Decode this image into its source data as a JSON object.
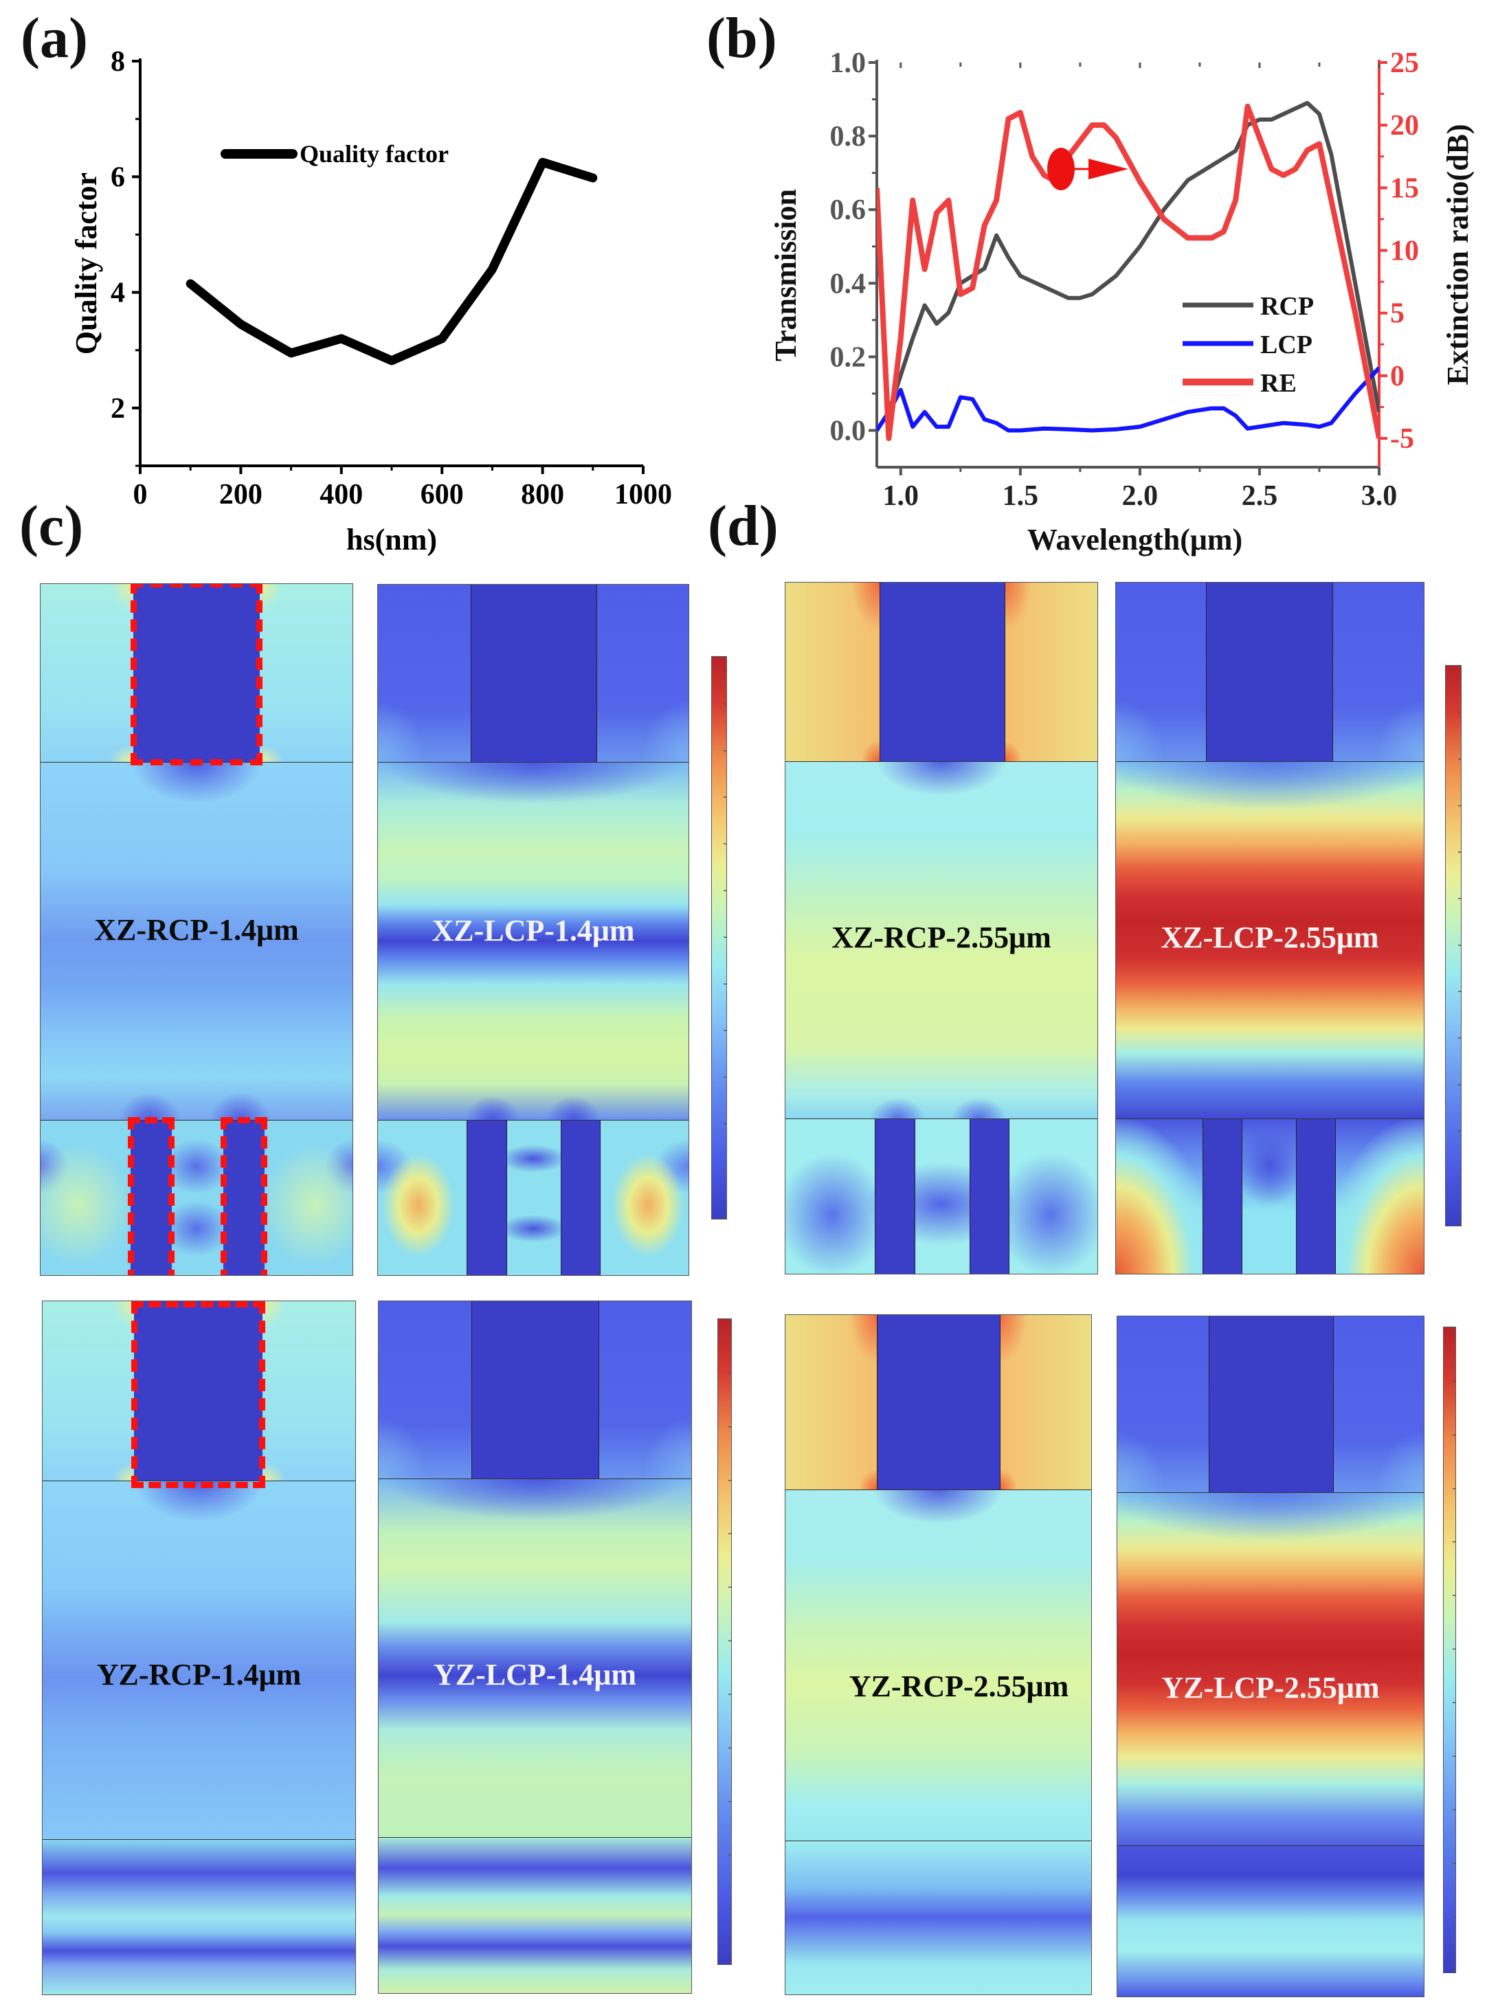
{
  "panel_labels": {
    "a": "(a)",
    "b": "(b)",
    "c": "(c)",
    "d": "(d)"
  },
  "chart_data": [
    {
      "type": "line",
      "title": "",
      "xlabel": "hs(nm)",
      "ylabel": "Quality factor",
      "xlim": [
        0,
        1000
      ],
      "ylim": [
        1,
        8
      ],
      "xticks": [
        0,
        200,
        400,
        600,
        800,
        1000
      ],
      "xtick_labels": [
        "0",
        "200",
        "400",
        "600",
        "800",
        "1000"
      ],
      "yticks": [
        2,
        4,
        6,
        8
      ],
      "ytick_labels": [
        "2",
        "4",
        "6",
        "8"
      ],
      "legend": "top-left",
      "series": [
        {
          "name": "Quality factor",
          "color": "#000000",
          "x": [
            100,
            200,
            300,
            400,
            500,
            600,
            700,
            800,
            900
          ],
          "y": [
            4.15,
            3.45,
            2.95,
            3.2,
            2.82,
            3.2,
            4.4,
            6.25,
            5.98
          ]
        }
      ]
    },
    {
      "type": "line",
      "title": "",
      "xlabel": "Wavelength(μm)",
      "ylabel": "Transmission",
      "y2label": "Extinction ratio(dB)",
      "xlim": [
        0.9,
        3.0
      ],
      "ylim": [
        -0.1,
        1.0
      ],
      "y2lim": [
        -7.3,
        25
      ],
      "xticks": [
        1.0,
        1.5,
        2.0,
        2.5,
        3.0
      ],
      "xtick_labels": [
        "1.0",
        "1.5",
        "2.0",
        "2.5",
        "3.0"
      ],
      "yticks": [
        0.0,
        0.2,
        0.4,
        0.6,
        0.8,
        1.0
      ],
      "ytick_labels": [
        "0.0",
        "0.2",
        "0.4",
        "0.6",
        "0.8",
        "1.0"
      ],
      "y2ticks": [
        -5,
        0,
        5,
        10,
        15,
        20,
        25
      ],
      "y2tick_labels": [
        "-5",
        "0",
        "5",
        "10",
        "15",
        "20",
        "25"
      ],
      "legend": "bottom-right",
      "annotation": {
        "marker": "red-ellipse-arrow-right",
        "x": 1.67,
        "y2": 16.5
      },
      "series": [
        {
          "name": "RCP",
          "axis": "left",
          "color": "#4d4d4d",
          "x": [
            0.9,
            0.95,
            1.0,
            1.05,
            1.1,
            1.15,
            1.2,
            1.25,
            1.3,
            1.35,
            1.4,
            1.45,
            1.5,
            1.6,
            1.7,
            1.75,
            1.8,
            1.9,
            2.0,
            2.1,
            2.2,
            2.3,
            2.4,
            2.45,
            2.5,
            2.55,
            2.6,
            2.7,
            2.75,
            2.8,
            2.9,
            3.0
          ],
          "y": [
            0.0,
            0.05,
            0.15,
            0.25,
            0.34,
            0.29,
            0.32,
            0.4,
            0.42,
            0.44,
            0.53,
            0.47,
            0.42,
            0.39,
            0.36,
            0.36,
            0.37,
            0.42,
            0.5,
            0.6,
            0.68,
            0.72,
            0.76,
            0.83,
            0.845,
            0.845,
            0.86,
            0.89,
            0.86,
            0.75,
            0.4,
            0.05
          ]
        },
        {
          "name": "LCP",
          "axis": "left",
          "color": "#1414ff",
          "x": [
            0.9,
            0.95,
            1.0,
            1.05,
            1.1,
            1.15,
            1.2,
            1.25,
            1.3,
            1.35,
            1.4,
            1.45,
            1.5,
            1.6,
            1.7,
            1.8,
            1.9,
            2.0,
            2.1,
            2.2,
            2.3,
            2.35,
            2.4,
            2.45,
            2.5,
            2.6,
            2.7,
            2.75,
            2.8,
            2.9,
            3.0
          ],
          "y": [
            0.0,
            0.05,
            0.11,
            0.01,
            0.05,
            0.01,
            0.01,
            0.09,
            0.085,
            0.03,
            0.02,
            0.0,
            0.0,
            0.005,
            0.003,
            0.0,
            0.003,
            0.01,
            0.03,
            0.05,
            0.06,
            0.06,
            0.04,
            0.005,
            0.01,
            0.02,
            0.015,
            0.01,
            0.02,
            0.1,
            0.17
          ]
        },
        {
          "name": "RE",
          "axis": "right",
          "color": "#ef4040",
          "x": [
            0.9,
            0.95,
            1.0,
            1.05,
            1.1,
            1.15,
            1.2,
            1.25,
            1.3,
            1.35,
            1.4,
            1.45,
            1.5,
            1.55,
            1.6,
            1.65,
            1.7,
            1.8,
            1.85,
            1.9,
            2.0,
            2.1,
            2.2,
            2.3,
            2.35,
            2.4,
            2.45,
            2.5,
            2.55,
            2.6,
            2.65,
            2.7,
            2.75,
            2.8,
            2.9,
            3.0
          ],
          "y": [
            15,
            -5,
            3,
            14,
            8.5,
            13,
            14,
            6.5,
            7,
            12,
            14,
            20.5,
            21,
            17.5,
            16,
            15.5,
            17.5,
            20,
            20,
            19,
            15.5,
            12.5,
            11,
            11,
            11.5,
            14,
            21.5,
            19,
            16.5,
            16,
            16.5,
            18,
            18.5,
            14,
            5,
            -5
          ]
        }
      ]
    }
  ],
  "field_maps": {
    "c_xz_rcp": "XZ-RCP-1.4μm",
    "c_xz_lcp": "XZ-LCP-1.4μm",
    "c_yz_rcp": "YZ-RCP-1.4μm",
    "c_yz_lcp": "YZ-LCP-1.4μm",
    "d_xz_rcp": "XZ-RCP-2.55μm",
    "d_xz_lcp": "XZ-LCP-2.55μm",
    "d_yz_rcp": "YZ-RCP-2.55μm",
    "d_yz_lcp": "YZ-LCP-2.55μm"
  }
}
